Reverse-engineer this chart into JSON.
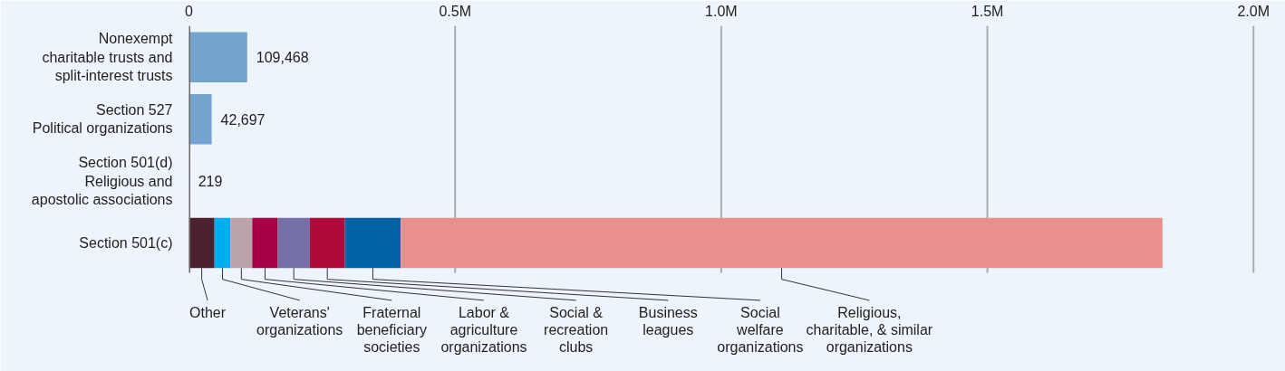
{
  "chart_data": {
    "type": "bar",
    "orientation": "horizontal",
    "stacked": true,
    "categories": [
      "Nonexempt\ncharitable trusts and\nsplit-interest trusts",
      "Section 527\nPolitical organizations",
      "Section 501(d)\nReligious and\napostolic associations",
      "Section 501(c)"
    ],
    "series": [
      {
        "color": "#74a3cf",
        "values": [
          109468,
          42697,
          219,
          null
        ],
        "value_labels": [
          "109,468",
          "42,697",
          "219",
          null
        ]
      },
      {
        "name": "Other",
        "color": "#4b2130",
        "values": [
          null,
          null,
          null,
          48000
        ]
      },
      {
        "name": "Veterans'\norganizations",
        "color": "#00aeef",
        "values": [
          null,
          null,
          null,
          30000
        ]
      },
      {
        "name": "Fraternal\nbeneficiary\nsocieties",
        "color": "#bca3aa",
        "values": [
          null,
          null,
          null,
          41000
        ]
      },
      {
        "name": "Labor &\nagriculture\norganizations",
        "color": "#a50044",
        "values": [
          null,
          null,
          null,
          48000
        ]
      },
      {
        "name": "Social &\nrecreation\nclubs",
        "color": "#7570a8",
        "values": [
          null,
          null,
          null,
          60000
        ]
      },
      {
        "name": "Business\nleagues",
        "color": "#ae0a3a",
        "values": [
          null,
          null,
          null,
          66000
        ]
      },
      {
        "name": "Social\nwelfare\norganizations",
        "color": "#0063a6",
        "values": [
          null,
          null,
          null,
          105000
        ]
      },
      {
        "name": "Religious,\ncharitable, & similar\norganizations",
        "color": "#e98f8d",
        "values": [
          null,
          null,
          null,
          1431000
        ]
      }
    ],
    "xlim": [
      0,
      2060000
    ],
    "xticks": [
      0,
      {
        "value": 500000,
        "label": "0.5M"
      },
      {
        "value": 1000000,
        "label": "1.0M"
      },
      {
        "value": 1500000,
        "label": "1.5M"
      },
      {
        "value": 2000000,
        "label": "2.0M"
      }
    ],
    "grid": "x"
  }
}
